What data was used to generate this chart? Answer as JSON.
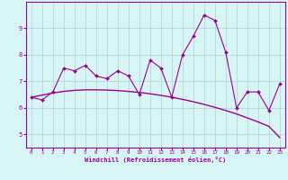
{
  "xlabel": "Windchill (Refroidissement éolien,°C)",
  "background_color": "#d8f5f5",
  "line_color": "#990099",
  "grid_color": "#b0d0d0",
  "x_values": [
    0,
    1,
    2,
    3,
    4,
    5,
    6,
    7,
    8,
    9,
    10,
    11,
    12,
    13,
    14,
    15,
    16,
    17,
    18,
    19,
    20,
    21,
    22,
    23
  ],
  "y_main": [
    6.4,
    6.3,
    6.6,
    7.5,
    7.4,
    7.6,
    7.2,
    7.1,
    7.4,
    7.2,
    6.5,
    7.8,
    7.5,
    6.4,
    8.0,
    8.7,
    9.5,
    9.3,
    8.1,
    6.0,
    6.6,
    6.6,
    5.9,
    6.9
  ],
  "y_trend": [
    6.4,
    6.48,
    6.56,
    6.62,
    6.66,
    6.68,
    6.68,
    6.67,
    6.65,
    6.62,
    6.58,
    6.53,
    6.47,
    6.4,
    6.32,
    6.23,
    6.13,
    6.02,
    5.9,
    5.77,
    5.62,
    5.47,
    5.3,
    4.88
  ],
  "ylim": [
    4.5,
    10.0
  ],
  "xlim": [
    -0.5,
    23.5
  ],
  "yticks": [
    5,
    6,
    7,
    8,
    9
  ],
  "xticks": [
    0,
    1,
    2,
    3,
    4,
    5,
    6,
    7,
    8,
    9,
    10,
    11,
    12,
    13,
    14,
    15,
    16,
    17,
    18,
    19,
    20,
    21,
    22,
    23
  ]
}
